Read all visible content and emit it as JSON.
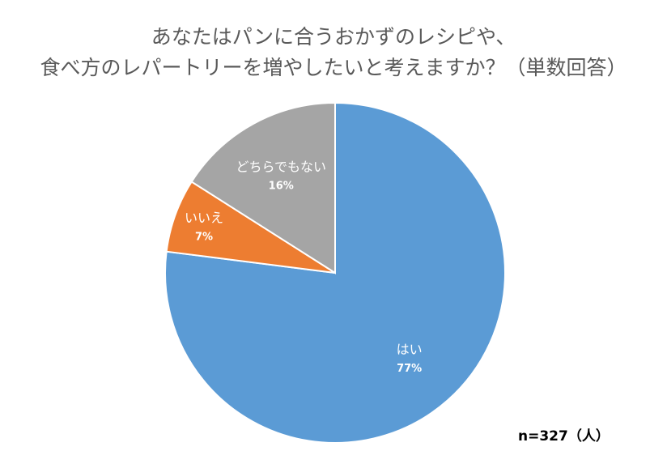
{
  "chart_data": {
    "type": "pie",
    "title": [
      "あなたはパンに合うおかずのレシピや、",
      "食べ方のレパートリーを増やしたいと考えますか？（単数回答）"
    ],
    "categories": [
      "はい",
      "いいえ",
      "どちらでもない"
    ],
    "values": [
      77,
      7,
      16
    ],
    "value_labels": [
      "77%",
      "7%",
      "16%"
    ],
    "colors": [
      "#5B9BD5",
      "#ED7D31",
      "#A5A5A5"
    ],
    "start": "top",
    "direction": "clockwise",
    "note": "n=327（人）"
  }
}
